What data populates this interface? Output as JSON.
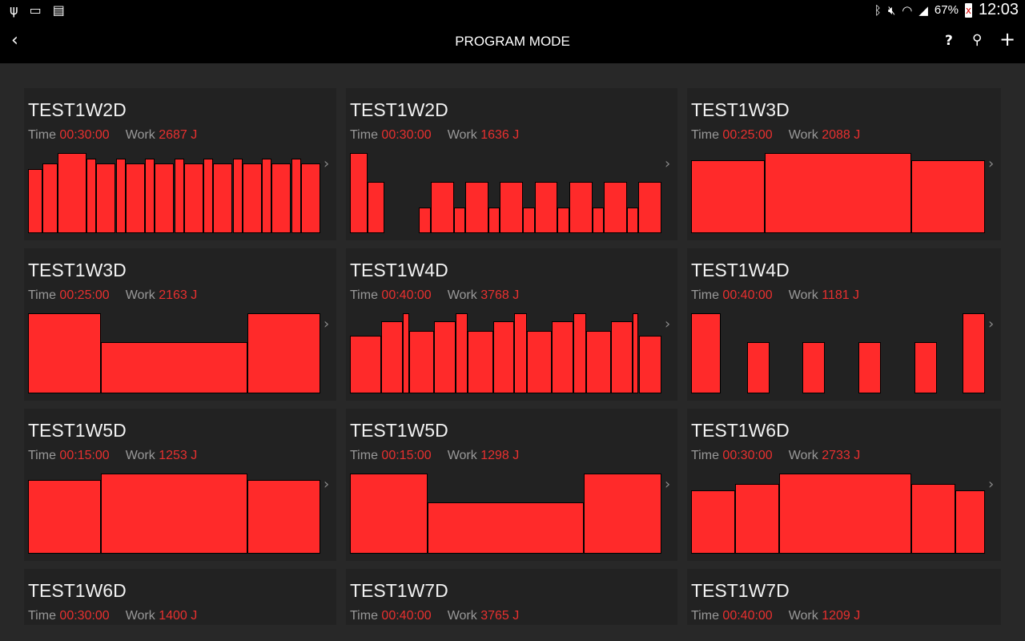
{
  "status_bar": {
    "icons": [
      "usb-icon",
      "cast-icon",
      "sim-off-icon",
      "bluetooth-icon",
      "mute-icon",
      "wifi-icon",
      "signal-icon",
      "battery-charging-icon"
    ],
    "battery": "67%",
    "time": "12:03"
  },
  "app_bar": {
    "title": "PROGRAM MODE",
    "back_icon": "chevron-left-icon",
    "actions": [
      {
        "icon": "help-icon",
        "label": "?"
      },
      {
        "icon": "search-icon"
      },
      {
        "icon": "add-icon",
        "label": "+"
      }
    ]
  },
  "labels": {
    "time": "Time",
    "work": "Work"
  },
  "colors": {
    "accent": "#e8302f",
    "bar": "#ff2a2a",
    "card": "#222222",
    "background": "#282828"
  },
  "programs": [
    {
      "name": "TEST1W2D",
      "time": "00:30:00",
      "work": "2687 J",
      "profile": [
        [
          1.5,
          0.8
        ],
        [
          1.5,
          0.87
        ],
        [
          3,
          1
        ],
        [
          1,
          0.93
        ],
        [
          2,
          0.87
        ],
        [
          1,
          0.93
        ],
        [
          2,
          0.87
        ],
        [
          1,
          0.93
        ],
        [
          2,
          0.87
        ],
        [
          1,
          0.93
        ],
        [
          2,
          0.87
        ],
        [
          1,
          0.93
        ],
        [
          2,
          0.87
        ],
        [
          1,
          0.93
        ],
        [
          2,
          0.87
        ],
        [
          1,
          0.93
        ],
        [
          2,
          0.87
        ],
        [
          1,
          0.93
        ],
        [
          2,
          0.87
        ]
      ]
    },
    {
      "name": "TEST1W2D",
      "time": "00:30:00",
      "work": "1636 J",
      "profile": [
        [
          1.5,
          1
        ],
        [
          1.5,
          0.64
        ],
        [
          3,
          0
        ],
        [
          1,
          0.32
        ],
        [
          2,
          0.64
        ],
        [
          1,
          0.32
        ],
        [
          2,
          0.64
        ],
        [
          1,
          0.32
        ],
        [
          2,
          0.64
        ],
        [
          1,
          0.32
        ],
        [
          2,
          0.64
        ],
        [
          1,
          0.32
        ],
        [
          2,
          0.64
        ],
        [
          1,
          0.32
        ],
        [
          2,
          0.64
        ],
        [
          1,
          0.32
        ],
        [
          2,
          0.64
        ]
      ]
    },
    {
      "name": "TEST1W3D",
      "time": "00:25:00",
      "work": "2088 J",
      "profile": [
        [
          1,
          0.91
        ],
        [
          2,
          1
        ],
        [
          1,
          0.91
        ]
      ]
    },
    {
      "name": "TEST1W3D",
      "time": "00:25:00",
      "work": "2163 J",
      "profile": [
        [
          1,
          1
        ],
        [
          2,
          0.64
        ],
        [
          1,
          1
        ]
      ]
    },
    {
      "name": "TEST1W4D",
      "time": "00:40:00",
      "work": "3768 J",
      "profile": [
        [
          4,
          0.72
        ],
        [
          2.7,
          0.9
        ],
        [
          0.8,
          1
        ],
        [
          3.2,
          0.78
        ],
        [
          2.7,
          0.9
        ],
        [
          1.6,
          1
        ],
        [
          3.2,
          0.78
        ],
        [
          2.7,
          0.9
        ],
        [
          1.6,
          1
        ],
        [
          3.2,
          0.78
        ],
        [
          2.7,
          0.9
        ],
        [
          1.6,
          1
        ],
        [
          3.2,
          0.78
        ],
        [
          2.7,
          0.9
        ],
        [
          0.8,
          1
        ],
        [
          2.9,
          0.72
        ]
      ]
    },
    {
      "name": "TEST1W4D",
      "time": "00:40:00",
      "work": "1181 J",
      "profile": [
        [
          4,
          1
        ],
        [
          3.5,
          0
        ],
        [
          3,
          0.64
        ],
        [
          4.5,
          0
        ],
        [
          3,
          0.64
        ],
        [
          4.5,
          0
        ],
        [
          3,
          0.64
        ],
        [
          4.5,
          0
        ],
        [
          3,
          0.64
        ],
        [
          3.5,
          0
        ],
        [
          3,
          1
        ]
      ]
    },
    {
      "name": "TEST1W5D",
      "time": "00:15:00",
      "work": "1253 J",
      "profile": [
        [
          1,
          0.92
        ],
        [
          2,
          1
        ],
        [
          1,
          0.92
        ]
      ]
    },
    {
      "name": "TEST1W5D",
      "time": "00:15:00",
      "work": "1298 J",
      "profile": [
        [
          1,
          1
        ],
        [
          2,
          0.64
        ],
        [
          1,
          1
        ]
      ]
    },
    {
      "name": "TEST1W6D",
      "time": "00:30:00",
      "work": "2733 J",
      "profile": [
        [
          4.5,
          0.79
        ],
        [
          4.5,
          0.87
        ],
        [
          13.5,
          1
        ],
        [
          4.5,
          0.87
        ],
        [
          3,
          0.79
        ]
      ]
    },
    {
      "name": "TEST1W6D",
      "time": "00:30:00",
      "work": "1400 J",
      "profile": []
    },
    {
      "name": "TEST1W7D",
      "time": "00:40:00",
      "work": "3765 J",
      "profile": []
    },
    {
      "name": "TEST1W7D",
      "time": "00:40:00",
      "work": "1209 J",
      "profile": []
    }
  ]
}
